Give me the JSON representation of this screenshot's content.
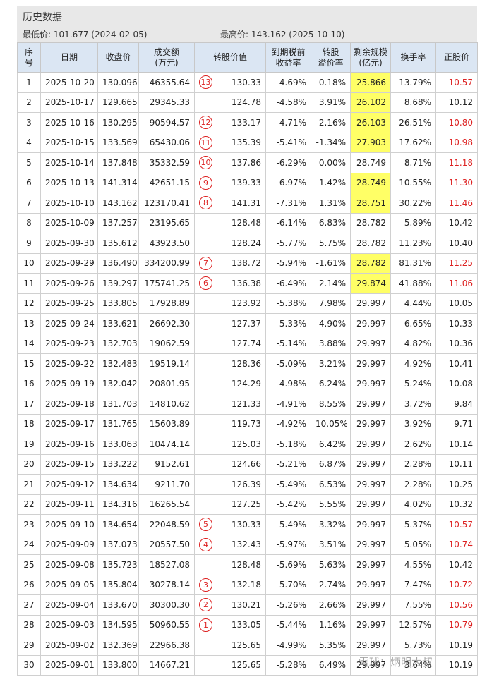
{
  "header": {
    "title": "历史数据",
    "low": "最低价: 101.677 (2024-02-05)",
    "high": "最高价: 143.162 (2025-10-10)"
  },
  "table": {
    "columns": [
      "序\n号",
      "日期",
      "收盘价",
      "成交额\n(万元)",
      "转股价值",
      "到期税前\n收益率",
      "转股\n溢价率",
      "剩余规模\n(亿元)",
      "换手率",
      "正股价"
    ],
    "rows": [
      {
        "cells": [
          "1",
          "2025-10-20",
          "130.096",
          "46355.64",
          "130.33",
          "-4.69%",
          "-0.18%",
          "25.866",
          "13.79%",
          "10.57"
        ],
        "badge": "13",
        "highlight": true,
        "red": true
      },
      {
        "cells": [
          "2",
          "2025-10-17",
          "129.665",
          "29345.33",
          "124.78",
          "-4.58%",
          "3.91%",
          "26.102",
          "8.68%",
          "10.12"
        ],
        "highlight": true
      },
      {
        "cells": [
          "3",
          "2025-10-16",
          "130.295",
          "90594.57",
          "133.17",
          "-4.71%",
          "-2.16%",
          "26.103",
          "26.51%",
          "10.80"
        ],
        "badge": "12",
        "highlight": true,
        "red": true
      },
      {
        "cells": [
          "4",
          "2025-10-15",
          "133.569",
          "65430.06",
          "135.39",
          "-5.41%",
          "-1.34%",
          "27.903",
          "17.62%",
          "10.98"
        ],
        "badge": "11",
        "highlight": true,
        "red": true
      },
      {
        "cells": [
          "5",
          "2025-10-14",
          "137.848",
          "35332.59",
          "137.86",
          "-6.29%",
          "0.00%",
          "28.749",
          "8.71%",
          "11.18"
        ],
        "badge": "10",
        "red": true
      },
      {
        "cells": [
          "6",
          "2025-10-13",
          "141.314",
          "42651.15",
          "139.33",
          "-6.97%",
          "1.42%",
          "28.749",
          "10.55%",
          "11.30"
        ],
        "badge": "9",
        "highlight": true,
        "red": true
      },
      {
        "cells": [
          "7",
          "2025-10-10",
          "143.162",
          "123170.41",
          "141.31",
          "-7.31%",
          "1.31%",
          "28.751",
          "30.22%",
          "11.46"
        ],
        "badge": "8",
        "highlight": true,
        "red": true
      },
      {
        "cells": [
          "8",
          "2025-10-09",
          "137.257",
          "23195.65",
          "128.48",
          "-6.14%",
          "6.83%",
          "28.782",
          "5.89%",
          "10.42"
        ]
      },
      {
        "cells": [
          "9",
          "2025-09-30",
          "135.612",
          "43923.50",
          "128.24",
          "-5.77%",
          "5.75%",
          "28.782",
          "11.23%",
          "10.40"
        ]
      },
      {
        "cells": [
          "10",
          "2025-09-29",
          "136.490",
          "334200.99",
          "138.72",
          "-5.94%",
          "-1.61%",
          "28.782",
          "81.31%",
          "11.25"
        ],
        "badge": "7",
        "highlight": true,
        "red": true
      },
      {
        "cells": [
          "11",
          "2025-09-26",
          "139.297",
          "175741.25",
          "136.38",
          "-6.49%",
          "2.14%",
          "29.874",
          "41.88%",
          "11.06"
        ],
        "badge": "6",
        "highlight": true,
        "red": true
      },
      {
        "cells": [
          "12",
          "2025-09-25",
          "133.805",
          "17928.89",
          "123.92",
          "-5.38%",
          "7.98%",
          "29.997",
          "4.44%",
          "10.05"
        ]
      },
      {
        "cells": [
          "13",
          "2025-09-24",
          "133.621",
          "26692.30",
          "127.37",
          "-5.33%",
          "4.90%",
          "29.997",
          "6.65%",
          "10.33"
        ]
      },
      {
        "cells": [
          "14",
          "2025-09-23",
          "132.703",
          "19062.59",
          "127.74",
          "-5.14%",
          "3.88%",
          "29.997",
          "4.82%",
          "10.36"
        ]
      },
      {
        "cells": [
          "15",
          "2025-09-22",
          "132.483",
          "19519.14",
          "128.36",
          "-5.09%",
          "3.21%",
          "29.997",
          "4.92%",
          "10.41"
        ]
      },
      {
        "cells": [
          "16",
          "2025-09-19",
          "132.042",
          "20801.95",
          "124.29",
          "-4.98%",
          "6.24%",
          "29.997",
          "5.24%",
          "10.08"
        ]
      },
      {
        "cells": [
          "17",
          "2025-09-18",
          "131.703",
          "14810.62",
          "121.33",
          "-4.91%",
          "8.55%",
          "29.997",
          "3.72%",
          "9.84"
        ]
      },
      {
        "cells": [
          "18",
          "2025-09-17",
          "131.765",
          "15603.89",
          "119.73",
          "-4.92%",
          "10.05%",
          "29.997",
          "3.92%",
          "9.71"
        ]
      },
      {
        "cells": [
          "19",
          "2025-09-16",
          "133.063",
          "10474.14",
          "125.03",
          "-5.18%",
          "6.42%",
          "29.997",
          "2.62%",
          "10.14"
        ]
      },
      {
        "cells": [
          "20",
          "2025-09-15",
          "133.222",
          "9152.61",
          "124.66",
          "-5.21%",
          "6.87%",
          "29.997",
          "2.28%",
          "10.11"
        ]
      },
      {
        "cells": [
          "21",
          "2025-09-12",
          "134.634",
          "9211.70",
          "126.39",
          "-5.49%",
          "6.53%",
          "29.997",
          "2.28%",
          "10.25"
        ]
      },
      {
        "cells": [
          "22",
          "2025-09-11",
          "134.316",
          "16265.54",
          "127.25",
          "-5.42%",
          "5.55%",
          "29.997",
          "4.02%",
          "10.32"
        ]
      },
      {
        "cells": [
          "23",
          "2025-09-10",
          "134.654",
          "22048.59",
          "130.33",
          "-5.49%",
          "3.32%",
          "29.997",
          "5.37%",
          "10.57"
        ],
        "badge": "5",
        "red": true
      },
      {
        "cells": [
          "24",
          "2025-09-09",
          "137.073",
          "20557.50",
          "132.43",
          "-5.97%",
          "3.51%",
          "29.997",
          "5.05%",
          "10.74"
        ],
        "badge": "4",
        "red": true
      },
      {
        "cells": [
          "25",
          "2025-09-08",
          "135.723",
          "18527.08",
          "128.48",
          "-5.69%",
          "5.63%",
          "29.997",
          "4.55%",
          "10.42"
        ]
      },
      {
        "cells": [
          "26",
          "2025-09-05",
          "135.804",
          "30278.14",
          "132.18",
          "-5.70%",
          "2.74%",
          "29.997",
          "7.47%",
          "10.72"
        ],
        "badge": "3",
        "red": true
      },
      {
        "cells": [
          "27",
          "2025-09-04",
          "133.670",
          "30300.30",
          "130.21",
          "-5.26%",
          "2.66%",
          "29.997",
          "7.55%",
          "10.56"
        ],
        "badge": "2",
        "red": true
      },
      {
        "cells": [
          "28",
          "2025-09-03",
          "134.595",
          "50960.55",
          "133.05",
          "-5.44%",
          "1.16%",
          "29.997",
          "12.57%",
          "10.79"
        ],
        "badge": "1",
        "red": true
      },
      {
        "cells": [
          "29",
          "2025-09-02",
          "132.369",
          "22966.38",
          "125.65",
          "-4.99%",
          "5.35%",
          "29.997",
          "5.73%",
          "10.19"
        ]
      },
      {
        "cells": [
          "30",
          "2025-09-01",
          "133.800",
          "14667.21",
          "125.65",
          "-5.28%",
          "6.49%",
          "29.997",
          "3.64%",
          "10.19"
        ]
      }
    ]
  },
  "watermark": "雪球：炳明大叔"
}
